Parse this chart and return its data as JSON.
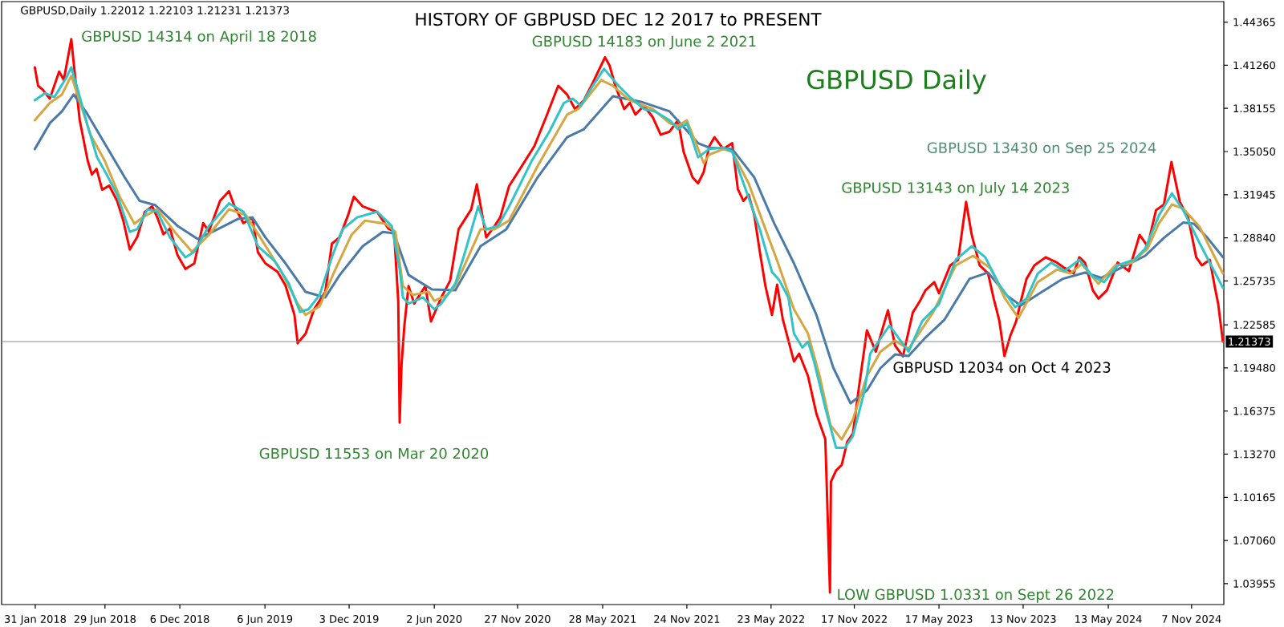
{
  "chart_data": {
    "type": "line",
    "title": "HISTORY OF GBPUSD DEC 12 2017 to PRESENT",
    "annotations": [
      "GBPUSD,Daily  1.22012 1.22103 1.21231 1.21373",
      "GBPUSD Daily",
      {
        "text": "GBPUSD 14314 on April 18 2018",
        "x": "2018-04-18",
        "y": 1.4314
      },
      {
        "text": "GBPUSD 14183 on June 2 2021",
        "x": "2021-06-02",
        "y": 1.4183
      },
      {
        "text": "GBPUSD 13430 on Sep 25 2024",
        "x": "2024-09-25",
        "y": 1.343
      },
      {
        "text": "GBPUSD 13143 on July 14 2023",
        "x": "2023-07-14",
        "y": 1.3143
      },
      {
        "text": "GBPUSD 12034 on Oct 4 2023",
        "x": "2023-10-04",
        "y": 1.2034
      },
      {
        "text": "GBPUSD 11553 on Mar 20 2020",
        "x": "2020-03-20",
        "y": 1.1553
      },
      {
        "text": "LOW GBPUSD 1.0331 on Sept 26 2022",
        "x": "2022-09-26",
        "y": 1.0331
      }
    ],
    "xlim": [
      "2017-11-20",
      "2025-01-15"
    ],
    "xticks": [
      {
        "value": "2018-01-31",
        "label": "31 Jan 2018"
      },
      {
        "value": "2018-06-29",
        "label": "29 Jun 2018"
      },
      {
        "value": "2018-12-06",
        "label": "6 Dec 2018"
      },
      {
        "value": "2019-06-06",
        "label": "6 Jun 2019"
      },
      {
        "value": "2019-12-03",
        "label": "3 Dec 2019"
      },
      {
        "value": "2020-06-02",
        "label": "2 Jun 2020"
      },
      {
        "value": "2020-11-27",
        "label": "27 Nov 2020"
      },
      {
        "value": "2021-05-28",
        "label": "28 May 2021"
      },
      {
        "value": "2021-11-24",
        "label": "24 Nov 2021"
      },
      {
        "value": "2022-05-23",
        "label": "23 May 2022"
      },
      {
        "value": "2022-11-17",
        "label": "17 Nov 2022"
      },
      {
        "value": "2023-05-17",
        "label": "17 May 2023"
      },
      {
        "value": "2023-11-13",
        "label": "13 Nov 2023"
      },
      {
        "value": "2024-05-13",
        "label": "13 May 2024"
      },
      {
        "value": "2024-11-07",
        "label": "7 Nov 2024"
      }
    ],
    "ylim": [
      1.0245,
      1.4584
    ],
    "yticks": [
      1.03955,
      {
        "value": 1.0706,
        "label": "1.07060"
      },
      1.10165,
      {
        "value": 1.1327,
        "label": "1.13270"
      },
      1.16375,
      {
        "value": 1.1948,
        "label": "1.19480"
      },
      1.22585,
      1.25735,
      {
        "value": 1.2884,
        "label": "1.28840"
      },
      1.31945,
      {
        "value": 1.3505,
        "label": "1.35050"
      },
      1.38155,
      {
        "value": 1.4126,
        "label": "1.41260"
      },
      1.44365
    ],
    "ref_lines": [
      {
        "axis": "y",
        "value": 1.21373,
        "label": "1.21373",
        "color": "#8c8c8c"
      }
    ],
    "series": [
      {
        "color": "#ff0000",
        "x": [
          "2018-01-30",
          "2018-02-06",
          "2018-02-16",
          "2018-03-03",
          "2018-03-23",
          "2018-04-02",
          "2018-04-18",
          "2018-04-28",
          "2018-05-06",
          "2018-05-23",
          "2018-06-01",
          "2018-06-11",
          "2018-06-23",
          "2018-07-08",
          "2018-07-25",
          "2018-08-07",
          "2018-08-21",
          "2018-09-06",
          "2018-09-22",
          "2018-10-08",
          "2018-10-19",
          "2018-11-01",
          "2018-11-15",
          "2018-12-01",
          "2018-12-18",
          "2019-01-06",
          "2019-01-25",
          "2019-02-06",
          "2019-03-02",
          "2019-03-21",
          "2019-04-02",
          "2019-04-21",
          "2019-05-10",
          "2019-05-22",
          "2019-06-07",
          "2019-07-03",
          "2019-07-20",
          "2019-08-08",
          "2019-08-15",
          "2019-09-01",
          "2019-09-19",
          "2019-10-13",
          "2019-10-27",
          "2019-11-13",
          "2019-12-01",
          "2019-12-13",
          "2020-01-01",
          "2020-02-01",
          "2020-02-25",
          "2020-03-08",
          "2020-03-17",
          "2020-03-20",
          "2020-03-24",
          "2020-03-30",
          "2020-04-08",
          "2020-04-20",
          "2020-05-14",
          "2020-05-26",
          "2020-06-17",
          "2020-07-06",
          "2020-07-24",
          "2020-08-20",
          "2020-09-01",
          "2020-09-21",
          "2020-10-09",
          "2020-10-21",
          "2020-11-09",
          "2020-12-02",
          "2021-01-02",
          "2021-01-27",
          "2021-02-22",
          "2021-03-13",
          "2021-03-30",
          "2021-04-18",
          "2021-05-07",
          "2021-06-02",
          "2021-06-12",
          "2021-06-24",
          "2021-07-13",
          "2021-07-25",
          "2021-08-06",
          "2021-08-24",
          "2021-09-12",
          "2021-09-29",
          "2021-10-18",
          "2021-11-05",
          "2021-11-17",
          "2021-12-06",
          "2021-12-18",
          "2021-12-30",
          "2022-01-11",
          "2022-01-22",
          "2022-02-10",
          "2022-03-01",
          "2022-03-13",
          "2022-03-25",
          "2022-04-05",
          "2022-04-17",
          "2022-04-29",
          "2022-05-11",
          "2022-05-25",
          "2022-06-05",
          "2022-06-17",
          "2022-07-11",
          "2022-07-22",
          "2022-08-10",
          "2022-08-28",
          "2022-09-16",
          "2022-09-26",
          "2022-09-28",
          "2022-10-09",
          "2022-10-21",
          "2022-11-02",
          "2022-11-14",
          "2022-11-26",
          "2022-12-14",
          "2023-01-02",
          "2023-01-28",
          "2023-02-12",
          "2023-03-01",
          "2023-03-22",
          "2023-04-06",
          "2023-04-18",
          "2023-05-07",
          "2023-05-17",
          "2023-06-10",
          "2023-06-27",
          "2023-07-14",
          "2023-07-26",
          "2023-08-12",
          "2023-08-30",
          "2023-09-11",
          "2023-09-23",
          "2023-10-04",
          "2023-10-17",
          "2023-10-29",
          "2023-11-08",
          "2023-11-20",
          "2023-12-07",
          "2023-12-31",
          "2024-01-24",
          "2024-02-10",
          "2024-02-29",
          "2024-03-12",
          "2024-03-24",
          "2024-04-10",
          "2024-04-22",
          "2024-05-10",
          "2024-06-02",
          "2024-06-26",
          "2024-07-19",
          "2024-08-05",
          "2024-08-23",
          "2024-09-09",
          "2024-09-25",
          "2024-10-13",
          "2024-10-31",
          "2024-11-17",
          "2024-11-29",
          "2024-12-16",
          "2024-12-27",
          "2025-01-03",
          "2025-01-13"
        ],
        "values": [
          1.4111,
          1.3978,
          1.395,
          1.3885,
          1.408,
          1.402,
          1.4314,
          1.398,
          1.373,
          1.344,
          1.334,
          1.338,
          1.323,
          1.326,
          1.315,
          1.301,
          1.28,
          1.289,
          1.307,
          1.311,
          1.303,
          1.291,
          1.295,
          1.276,
          1.266,
          1.27,
          1.299,
          1.293,
          1.315,
          1.322,
          1.311,
          1.299,
          1.303,
          1.278,
          1.27,
          1.264,
          1.254,
          1.233,
          1.2125,
          1.2195,
          1.237,
          1.2495,
          1.284,
          1.289,
          1.305,
          1.318,
          1.311,
          1.307,
          1.295,
          1.293,
          1.243,
          1.1553,
          1.197,
          1.225,
          1.2537,
          1.2411,
          1.2537,
          1.2282,
          1.2455,
          1.2577,
          1.2946,
          1.3089,
          1.3269,
          1.2887,
          1.2969,
          1.3031,
          1.3257,
          1.3378,
          1.3544,
          1.3753,
          1.3978,
          1.3915,
          1.3811,
          1.3874,
          1.4,
          1.4183,
          1.4122,
          1.3978,
          1.3811,
          1.3856,
          1.3771,
          1.3834,
          1.3753,
          1.3627,
          1.3648,
          1.373,
          1.3503,
          1.332,
          1.3276,
          1.3358,
          1.3544,
          1.3608,
          1.3523,
          1.3565,
          1.3235,
          1.315,
          1.3194,
          1.305,
          1.2784,
          1.2537,
          1.2329,
          1.2547,
          1.23,
          1.1994,
          1.2051,
          1.1889,
          1.1618,
          1.1435,
          1.0331,
          1.1128,
          1.1209,
          1.1249,
          1.1417,
          1.1475,
          1.1786,
          1.2218,
          1.2065,
          1.2363,
          1.211,
          1.2031,
          1.2346,
          1.2427,
          1.2506,
          1.2565,
          1.2486,
          1.2686,
          1.2726,
          1.3143,
          1.2905,
          1.2686,
          1.2628,
          1.2447,
          1.2288,
          1.2034,
          1.2184,
          1.2283,
          1.2427,
          1.2587,
          1.2686,
          1.2744,
          1.2706,
          1.2666,
          1.2628,
          1.2744,
          1.2706,
          1.2506,
          1.2447,
          1.2506,
          1.2706,
          1.2645,
          1.2905,
          1.2824,
          1.3083,
          1.3124,
          1.343,
          1.3142,
          1.3026,
          1.2744,
          1.2686,
          1.2726,
          1.2525,
          1.2408,
          1.2137
        ]
      },
      {
        "color": "#4a7aa8",
        "x": [
          "2018-01-30",
          "2018-03-03",
          "2018-03-29",
          "2018-04-23",
          "2018-05-19",
          "2018-06-28",
          "2018-08-10",
          "2018-09-11",
          "2018-10-14",
          "2018-12-01",
          "2019-01-13",
          "2019-02-25",
          "2019-04-09",
          "2019-05-10",
          "2019-06-07",
          "2019-07-20",
          "2019-09-01",
          "2019-10-13",
          "2019-11-13",
          "2020-01-01",
          "2020-02-13",
          "2020-03-08",
          "2020-04-08",
          "2020-05-28",
          "2020-07-17",
          "2020-09-09",
          "2020-11-03",
          "2021-01-09",
          "2021-03-13",
          "2021-04-18",
          "2021-06-19",
          "2021-08-18",
          "2021-10-18",
          "2021-12-18",
          "2022-01-11",
          "2022-03-01",
          "2022-04-17",
          "2022-05-30",
          "2022-07-11",
          "2022-08-28",
          "2022-10-03",
          "2022-11-09",
          "2022-12-14",
          "2023-01-12",
          "2023-02-12",
          "2023-03-13",
          "2023-04-18",
          "2023-05-29",
          "2023-07-21",
          "2023-08-30",
          "2023-10-10",
          "2023-11-08",
          "2023-12-19",
          "2024-02-05",
          "2024-03-24",
          "2024-04-28",
          "2024-06-02",
          "2024-07-31",
          "2024-09-09",
          "2024-10-20",
          "2024-11-12",
          "2024-12-11",
          "2025-01-13"
        ],
        "values": [
          1.3523,
          1.3709,
          1.3794,
          1.3915,
          1.3793,
          1.3565,
          1.332,
          1.315,
          1.312,
          1.297,
          1.2876,
          1.2946,
          1.302,
          1.3031,
          1.2887,
          1.27,
          1.2495,
          1.2455,
          1.2617,
          1.2824,
          1.2927,
          1.2917,
          1.2617,
          1.2513,
          1.2507,
          1.2824,
          1.2946,
          1.332,
          1.3608,
          1.3666,
          1.3903,
          1.3863,
          1.3794,
          1.3565,
          1.3533,
          1.3523,
          1.332,
          1.2986,
          1.27,
          1.2329,
          1.195,
          1.1693,
          1.1786,
          1.1947,
          1.2045,
          1.2034,
          1.2166,
          1.2296,
          1.2588,
          1.2634,
          1.2467,
          1.2397,
          1.2487,
          1.2588,
          1.2634,
          1.2596,
          1.2656,
          1.2755,
          1.2884,
          1.2994,
          1.2986,
          1.2884,
          1.2745
        ]
      },
      {
        "color": "#d6a640",
        "x": [
          "2018-01-30",
          "2018-03-03",
          "2018-03-29",
          "2018-04-18",
          "2018-05-03",
          "2018-05-29",
          "2018-06-28",
          "2018-07-31",
          "2018-08-31",
          "2018-09-17",
          "2018-10-19",
          "2018-11-25",
          "2019-01-01",
          "2019-02-06",
          "2019-03-21",
          "2019-04-26",
          "2019-05-27",
          "2019-07-08",
          "2019-08-15",
          "2019-09-01",
          "2019-10-01",
          "2019-11-01",
          "2019-12-08",
          "2020-01-06",
          "2020-02-18",
          "2020-03-11",
          "2020-03-27",
          "2020-04-17",
          "2020-05-21",
          "2020-06-02",
          "2020-06-30",
          "2020-07-17",
          "2020-09-09",
          "2020-10-09",
          "2020-11-09",
          "2021-01-09",
          "2021-03-13",
          "2021-04-06",
          "2021-05-25",
          "2021-06-19",
          "2021-07-25",
          "2021-09-12",
          "2021-10-18",
          "2021-11-05",
          "2021-11-24",
          "2021-12-30",
          "2022-01-11",
          "2022-02-10",
          "2022-03-01",
          "2022-04-05",
          "2022-05-11",
          "2022-06-05",
          "2022-07-11",
          "2022-08-10",
          "2022-09-04",
          "2022-09-27",
          "2022-10-21",
          "2022-11-14",
          "2022-12-14",
          "2023-01-12",
          "2023-02-12",
          "2023-03-13",
          "2023-05-05",
          "2023-06-22",
          "2023-07-29",
          "2023-09-04",
          "2023-10-05",
          "2023-11-03",
          "2023-12-14",
          "2024-01-24",
          "2024-02-22",
          "2024-03-17",
          "2024-04-22",
          "2024-05-28",
          "2024-07-02",
          "2024-08-05",
          "2024-08-29",
          "2024-09-26",
          "2024-10-20",
          "2024-11-24",
          "2025-01-13"
        ],
        "values": [
          1.373,
          1.3854,
          1.3915,
          1.405,
          1.3897,
          1.3627,
          1.3442,
          1.3176,
          1.2986,
          1.3031,
          1.3089,
          1.2927,
          1.2784,
          1.2905,
          1.3089,
          1.3049,
          1.2887,
          1.266,
          1.2411,
          1.2329,
          1.2392,
          1.2638,
          1.2905,
          1.3008,
          1.2986,
          1.2927,
          1.2537,
          1.2473,
          1.2496,
          1.243,
          1.2473,
          1.2537,
          1.2946,
          1.2946,
          1.3009,
          1.3401,
          1.3771,
          1.3811,
          1.4019,
          1.3978,
          1.3874,
          1.3811,
          1.3709,
          1.3689,
          1.373,
          1.3421,
          1.3483,
          1.3523,
          1.3503,
          1.3277,
          1.2946,
          1.272,
          1.237,
          1.2195,
          1.1889,
          1.1537,
          1.1433,
          1.1577,
          1.1889,
          1.2065,
          1.2143,
          1.2085,
          1.235,
          1.2686,
          1.2755,
          1.2666,
          1.2449,
          1.2307,
          1.2565,
          1.2656,
          1.2628,
          1.2695,
          1.2553,
          1.2686,
          1.2705,
          1.2806,
          1.2986,
          1.3124,
          1.3095,
          1.2964,
          1.2628
        ]
      },
      {
        "color": "#30c4c8",
        "x": [
          "2018-01-30",
          "2018-02-21",
          "2018-03-13",
          "2018-04-08",
          "2018-04-18",
          "2018-05-03",
          "2018-05-23",
          "2018-06-12",
          "2018-07-03",
          "2018-07-25",
          "2018-08-21",
          "2018-09-06",
          "2018-09-28",
          "2018-10-19",
          "2018-11-15",
          "2018-12-18",
          "2019-01-06",
          "2019-02-06",
          "2019-03-21",
          "2019-04-21",
          "2019-05-22",
          "2019-06-26",
          "2019-07-27",
          "2019-08-20",
          "2019-09-07",
          "2019-10-01",
          "2019-10-27",
          "2019-11-19",
          "2019-12-20",
          "2020-02-01",
          "2020-03-03",
          "2020-03-20",
          "2020-03-27",
          "2020-04-08",
          "2020-05-09",
          "2020-06-02",
          "2020-06-17",
          "2020-07-17",
          "2020-08-05",
          "2020-09-04",
          "2020-09-21",
          "2020-10-16",
          "2020-11-09",
          "2020-12-28",
          "2021-02-03",
          "2021-03-06",
          "2021-03-25",
          "2021-04-11",
          "2021-05-07",
          "2021-05-31",
          "2021-07-01",
          "2021-07-25",
          "2021-08-24",
          "2021-09-17",
          "2021-10-18",
          "2021-11-05",
          "2021-11-24",
          "2021-12-18",
          "2022-01-11",
          "2022-02-10",
          "2022-03-01",
          "2022-03-25",
          "2022-04-29",
          "2022-05-25",
          "2022-06-10",
          "2022-06-29",
          "2022-07-11",
          "2022-07-29",
          "2022-08-10",
          "2022-08-23",
          "2022-09-16",
          "2022-10-09",
          "2022-10-28",
          "2022-11-14",
          "2022-12-09",
          "2022-12-21",
          "2023-01-31",
          "2023-03-13",
          "2023-04-11",
          "2023-05-17",
          "2023-06-22",
          "2023-07-26",
          "2023-08-24",
          "2023-09-23",
          "2023-10-27",
          "2023-11-20",
          "2023-12-14",
          "2024-01-12",
          "2024-02-10",
          "2024-03-12",
          "2024-04-10",
          "2024-05-04",
          "2024-06-02",
          "2024-07-07",
          "2024-07-31",
          "2024-08-29",
          "2024-09-26",
          "2024-10-20",
          "2024-11-24",
          "2024-12-19",
          "2025-01-13"
        ],
        "values": [
          1.3874,
          1.3925,
          1.3897,
          1.404,
          1.4111,
          1.3937,
          1.3689,
          1.3464,
          1.3337,
          1.3194,
          1.2927,
          1.2946,
          1.3089,
          1.3072,
          1.2887,
          1.2743,
          1.2784,
          1.2969,
          1.3132,
          1.3072,
          1.2824,
          1.272,
          1.2555,
          1.2351,
          1.237,
          1.2473,
          1.2743,
          1.2946,
          1.3031,
          1.3072,
          1.2969,
          1.266,
          1.2455,
          1.2411,
          1.2455,
          1.237,
          1.2411,
          1.2555,
          1.2761,
          1.311,
          1.2946,
          1.2969,
          1.311,
          1.3442,
          1.3648,
          1.3854,
          1.3886,
          1.3834,
          1.3978,
          1.41,
          1.3978,
          1.3897,
          1.3811,
          1.3794,
          1.373,
          1.3666,
          1.3709,
          1.3464,
          1.3523,
          1.3534,
          1.3503,
          1.3277,
          1.2946,
          1.2638,
          1.2577,
          1.2455,
          1.2195,
          1.2094,
          1.2137,
          1.1994,
          1.1661,
          1.1373,
          1.1373,
          1.1457,
          1.1786,
          1.205,
          1.2253,
          1.2065,
          1.2284,
          1.2408,
          1.2726,
          1.2824,
          1.2744,
          1.2546,
          1.2385,
          1.2447,
          1.2626,
          1.2705,
          1.2645,
          1.2726,
          1.2605,
          1.2565,
          1.2686,
          1.2726,
          1.2806,
          1.3043,
          1.3204,
          1.3083,
          1.2847,
          1.2686,
          1.2525
        ]
      }
    ]
  }
}
